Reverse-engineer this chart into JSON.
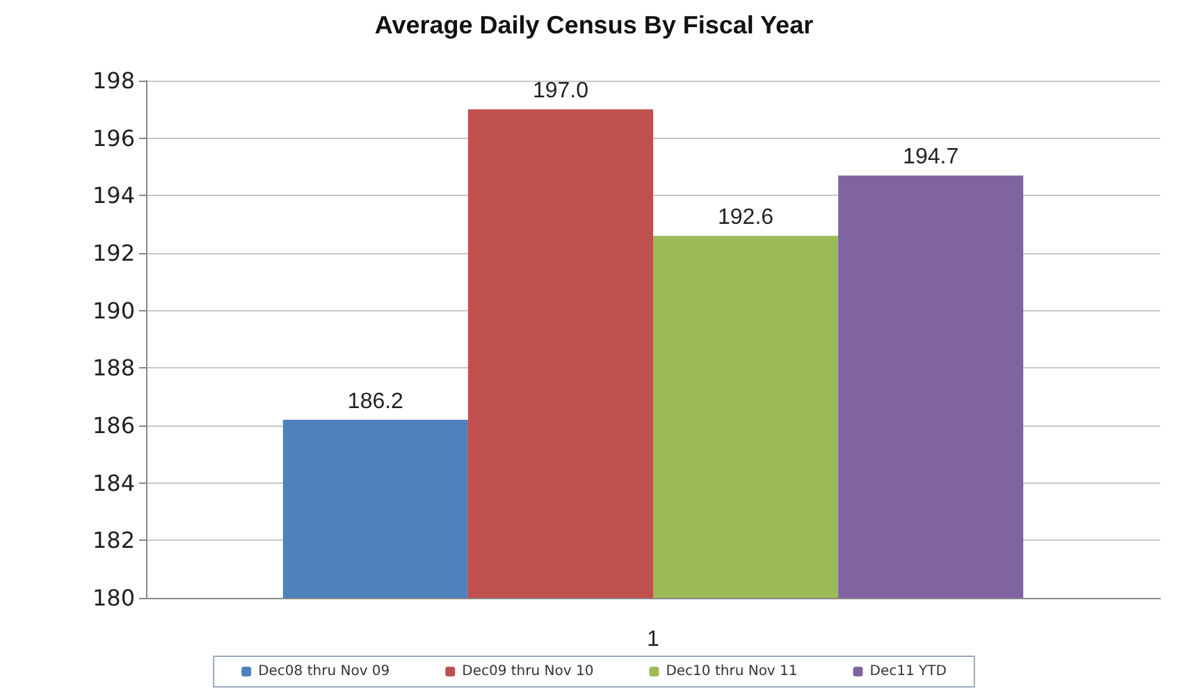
{
  "chart_data": {
    "type": "bar",
    "title": "Average Daily Census By Fiscal Year",
    "categories": [
      "1"
    ],
    "series": [
      {
        "name": "Dec08 thru Nov 09",
        "color": "#4f81bd",
        "values": [
          186.2
        ],
        "value_labels": [
          "186.2"
        ]
      },
      {
        "name": "Dec09 thru Nov 10",
        "color": "#c0504d",
        "values": [
          197.0
        ],
        "value_labels": [
          "197.0"
        ]
      },
      {
        "name": "Dec10 thru Nov 11",
        "color": "#9bbb59",
        "values": [
          192.6
        ],
        "value_labels": [
          "192.6"
        ]
      },
      {
        "name": "Dec11 YTD",
        "color": "#8064a2",
        "values": [
          194.7
        ],
        "value_labels": [
          "194.7"
        ]
      }
    ],
    "ylim": [
      180,
      198
    ],
    "yticks": [
      180,
      182,
      184,
      186,
      188,
      190,
      192,
      194,
      196,
      198
    ],
    "grid": "y",
    "legend": "bottom"
  }
}
